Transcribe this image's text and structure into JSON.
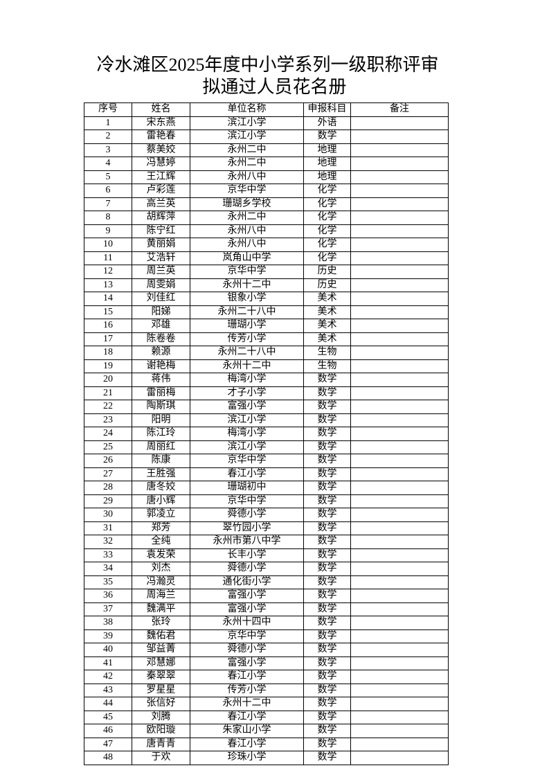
{
  "title": {
    "line1": "冷水滩区2025年度中小学系列一级职称评审",
    "line2": "拟通过人员花名册"
  },
  "table": {
    "headers": [
      "序号",
      "姓名",
      "单位名称",
      "申报科目",
      "备注"
    ],
    "rows": [
      [
        "1",
        "宋东燕",
        "滨江小学",
        "外语",
        ""
      ],
      [
        "2",
        "雷艳春",
        "滨江小学",
        "数学",
        ""
      ],
      [
        "3",
        "蔡美姣",
        "永州二中",
        "地理",
        ""
      ],
      [
        "4",
        "冯慧婷",
        "永州二中",
        "地理",
        ""
      ],
      [
        "5",
        "王江辉",
        "永州八中",
        "地理",
        ""
      ],
      [
        "6",
        "卢彩莲",
        "京华中学",
        "化学",
        ""
      ],
      [
        "7",
        "高兰英",
        "珊瑚乡学校",
        "化学",
        ""
      ],
      [
        "8",
        "胡辉萍",
        "永州二中",
        "化学",
        ""
      ],
      [
        "9",
        "陈宁红",
        "永州八中",
        "化学",
        ""
      ],
      [
        "10",
        "黄丽娟",
        "永州八中",
        "化学",
        ""
      ],
      [
        "11",
        "艾浩轩",
        "岚角山中学",
        "化学",
        ""
      ],
      [
        "12",
        "周兰英",
        "京华中学",
        "历史",
        ""
      ],
      [
        "13",
        "周雯娟",
        "永州十二中",
        "历史",
        ""
      ],
      [
        "14",
        "刘佳红",
        "银象小学",
        "美术",
        ""
      ],
      [
        "15",
        "阳娣",
        "永州二十八中",
        "美术",
        ""
      ],
      [
        "16",
        "邓雄",
        "珊瑚小学",
        "美术",
        ""
      ],
      [
        "17",
        "陈卷卷",
        "传芳小学",
        "美术",
        ""
      ],
      [
        "18",
        "赖源",
        "永州二十八中",
        "生物",
        ""
      ],
      [
        "19",
        "谢艳梅",
        "永州十二中",
        "生物",
        ""
      ],
      [
        "20",
        "蒋伟",
        "梅湾小学",
        "数学",
        ""
      ],
      [
        "21",
        "雷丽梅",
        "才子小学",
        "数学",
        ""
      ],
      [
        "22",
        "陶斯琪",
        "富强小学",
        "数学",
        ""
      ],
      [
        "23",
        "阳明",
        "滨江小学",
        "数学",
        ""
      ],
      [
        "24",
        "陈江玲",
        "梅湾小学",
        "数学",
        ""
      ],
      [
        "25",
        "周丽红",
        "滨江小学",
        "数学",
        ""
      ],
      [
        "26",
        "陈康",
        "京华中学",
        "数学",
        ""
      ],
      [
        "27",
        "王胜强",
        "春江小学",
        "数学",
        ""
      ],
      [
        "28",
        "唐冬姣",
        "珊瑚初中",
        "数学",
        ""
      ],
      [
        "29",
        "唐小辉",
        "京华中学",
        "数学",
        ""
      ],
      [
        "30",
        "郭凌立",
        "舜德小学",
        "数学",
        ""
      ],
      [
        "31",
        "郑芳",
        "翠竹园小学",
        "数学",
        ""
      ],
      [
        "32",
        "全纯",
        "永州市第八中学",
        "数学",
        ""
      ],
      [
        "33",
        "袁发荣",
        "长丰小学",
        "数学",
        ""
      ],
      [
        "34",
        "刘杰",
        "舜德小学",
        "数学",
        ""
      ],
      [
        "35",
        "冯瀚灵",
        "通化街小学",
        "数学",
        ""
      ],
      [
        "36",
        "周海兰",
        "富强小学",
        "数学",
        ""
      ],
      [
        "37",
        "魏满平",
        "富强小学",
        "数学",
        ""
      ],
      [
        "38",
        "张玲",
        "永州十四中",
        "数学",
        ""
      ],
      [
        "39",
        "魏佑君",
        "京华中学",
        "数学",
        ""
      ],
      [
        "40",
        "邹益菁",
        "舜德小学",
        "数学",
        ""
      ],
      [
        "41",
        "邓慧娜",
        "富强小学",
        "数学",
        ""
      ],
      [
        "42",
        "秦翠翠",
        "春江小学",
        "数学",
        ""
      ],
      [
        "43",
        "罗星星",
        "传芳小学",
        "数学",
        ""
      ],
      [
        "44",
        "张信好",
        "永州十二中",
        "数学",
        ""
      ],
      [
        "45",
        "刘腾",
        "春江小学",
        "数学",
        ""
      ],
      [
        "46",
        "欧阳璇",
        "朱家山小学",
        "数学",
        ""
      ],
      [
        "47",
        "唐青青",
        "春江小学",
        "数学",
        ""
      ],
      [
        "48",
        "于欢",
        "珍珠小学",
        "数学",
        ""
      ]
    ]
  }
}
